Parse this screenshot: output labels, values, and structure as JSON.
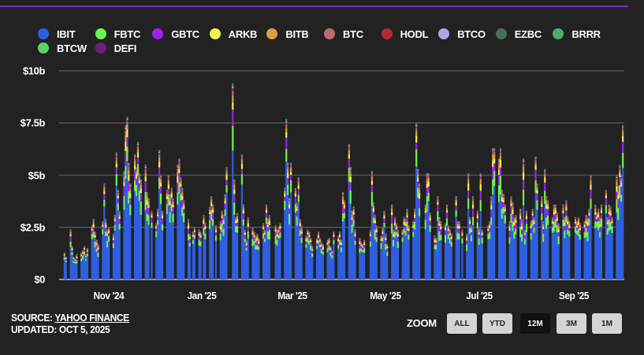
{
  "legend": [
    {
      "name": "IBIT",
      "color": "#2f5fe0"
    },
    {
      "name": "FBTC",
      "color": "#6cf54a"
    },
    {
      "name": "GBTC",
      "color": "#a020f0"
    },
    {
      "name": "ARKB",
      "color": "#eef54a"
    },
    {
      "name": "BITB",
      "color": "#d9a03c"
    },
    {
      "name": "BTC",
      "color": "#c06874"
    },
    {
      "name": "HODL",
      "color": "#b02a35"
    },
    {
      "name": "BTCO",
      "color": "#b3a3e8"
    },
    {
      "name": "EZBC",
      "color": "#4a7058"
    },
    {
      "name": "BRRR",
      "color": "#4caf6a"
    },
    {
      "name": "BTCW",
      "color": "#5fcf6a"
    },
    {
      "name": "DEFI",
      "color": "#6a1f7a"
    }
  ],
  "footer": {
    "source_prefix": "SOURCE: ",
    "source_link": "YAHOO FINANCE",
    "updated": "UPDATED: OCT 5, 2025"
  },
  "zoom": {
    "label": "ZOOM",
    "buttons": [
      "ALL",
      "YTD",
      "12M",
      "3M",
      "1M"
    ],
    "active": "12M"
  },
  "chart_data": {
    "type": "bar",
    "stacked": true,
    "ylim": [
      0,
      10
    ],
    "yticks": [
      {
        "value": 0,
        "label": "$0"
      },
      {
        "value": 2.5,
        "label": "$2.5b"
      },
      {
        "value": 5,
        "label": "$5b"
      },
      {
        "value": 7.5,
        "label": "$7.5b"
      },
      {
        "value": 10,
        "label": "$10b"
      }
    ],
    "xticks": [
      {
        "date": "2024-11-01",
        "label": "Nov '24"
      },
      {
        "date": "2025-01-01",
        "label": "Jan '25"
      },
      {
        "date": "2025-03-01",
        "label": "Mar '25"
      },
      {
        "date": "2025-05-01",
        "label": "May '25"
      },
      {
        "date": "2025-07-01",
        "label": "Jul '25"
      },
      {
        "date": "2025-09-01",
        "label": "Sep '25"
      }
    ],
    "grid": true,
    "legend_position": "top",
    "unit": "USD billions, daily trading volume",
    "approx_share": {
      "IBIT": 0.7,
      "FBTC": 0.1,
      "GBTC": 0.07,
      "ARKB": 0.04,
      "BITB": 0.03,
      "BTC": 0.02,
      "HODL": 0.01,
      "BTCO": 0.008,
      "EZBC": 0.006,
      "BRRR": 0.004,
      "BTCW": 0.003,
      "DEFI": 0.002
    },
    "daily_totals": [
      {
        "month": "2024-10",
        "days": [
          3,
          4,
          7,
          8,
          9,
          10,
          11,
          14,
          15,
          16,
          17,
          18,
          21,
          22,
          23,
          24,
          25,
          28,
          29,
          30,
          31
        ],
        "totals": [
          1.3,
          1.1,
          2.4,
          1.6,
          1.1,
          1.0,
          1.2,
          1.3,
          1.4,
          1.6,
          1.2,
          1.5,
          2.6,
          2.9,
          2.3,
          1.9,
          1.7,
          2.8,
          4.6,
          2.9,
          2.4
        ]
      },
      {
        "month": "2024-11",
        "days": [
          1,
          4,
          5,
          6,
          7,
          8,
          11,
          12,
          13,
          14,
          15,
          18,
          19,
          20,
          21,
          22,
          25,
          26,
          27,
          29
        ],
        "totals": [
          2.5,
          2.2,
          3.1,
          6.1,
          4.3,
          3.3,
          5.2,
          7.4,
          7.8,
          5.6,
          4.6,
          6.0,
          5.4,
          6.6,
          5.1,
          4.8,
          5.5,
          4.2,
          3.9,
          3.3
        ]
      },
      {
        "month": "2024-12",
        "days": [
          2,
          3,
          4,
          5,
          6,
          9,
          10,
          11,
          12,
          13,
          16,
          17,
          18,
          19,
          20,
          23,
          24,
          26,
          27,
          30,
          31
        ],
        "totals": [
          2.7,
          3.4,
          6.2,
          5.0,
          3.3,
          4.3,
          5.0,
          4.1,
          4.4,
          3.9,
          5.5,
          5.8,
          4.9,
          4.4,
          3.8,
          2.9,
          2.2,
          2.3,
          2.5,
          2.4,
          2.3
        ]
      },
      {
        "month": "2025-01",
        "days": [
          2,
          3,
          6,
          7,
          8,
          10,
          13,
          14,
          15,
          16,
          17,
          21,
          22,
          23,
          24,
          27,
          28,
          29,
          30,
          31
        ],
        "totals": [
          3.1,
          2.7,
          3.5,
          4.0,
          3.6,
          2.6,
          2.8,
          3.3,
          3.1,
          4.1,
          5.4,
          9.4,
          4.8,
          3.0,
          3.2,
          6.0,
          3.6,
          2.4,
          1.9,
          3.0
        ]
      },
      {
        "month": "2025-02",
        "days": [
          3,
          4,
          5,
          6,
          7,
          10,
          11,
          12,
          13,
          14,
          18,
          19,
          20,
          21,
          24,
          25,
          26,
          27,
          28
        ],
        "totals": [
          2.5,
          2.3,
          2.1,
          2.2,
          2.0,
          2.7,
          2.4,
          3.6,
          2.9,
          3.1,
          2.6,
          2.4,
          2.5,
          2.7,
          4.4,
          7.7,
          5.6,
          3.9,
          5.6
        ]
      },
      {
        "month": "2025-03",
        "days": [
          3,
          4,
          5,
          6,
          7,
          10,
          11,
          12,
          13,
          14,
          17,
          18,
          19,
          20,
          21,
          24,
          25,
          26,
          27,
          28,
          31
        ],
        "totals": [
          4.4,
          3.7,
          4.9,
          2.9,
          2.6,
          2.1,
          2.4,
          2.3,
          2.0,
          1.6,
          2.0,
          2.3,
          2.0,
          1.8,
          1.7,
          1.9,
          2.0,
          1.6,
          1.4,
          2.3,
          2.1
        ]
      },
      {
        "month": "2025-04",
        "days": [
          1,
          2,
          3,
          4,
          7,
          8,
          9,
          10,
          11,
          14,
          15,
          16,
          17,
          21,
          22,
          23,
          24,
          25,
          28,
          29,
          30
        ],
        "totals": [
          2.3,
          1.9,
          4.2,
          3.8,
          6.5,
          5.4,
          3.3,
          3.5,
          2.4,
          2.0,
          1.8,
          1.7,
          1.9,
          2.4,
          5.2,
          3.7,
          3.1,
          2.6,
          2.1,
          2.5,
          3.3
        ]
      },
      {
        "month": "2025-05",
        "days": [
          1,
          2,
          5,
          6,
          7,
          8,
          9,
          12,
          13,
          14,
          15,
          16,
          19,
          20,
          21,
          22,
          23,
          27,
          28,
          29,
          30
        ],
        "totals": [
          2.2,
          1.7,
          3.6,
          2.4,
          3.0,
          2.7,
          2.4,
          2.4,
          3.0,
          2.9,
          3.4,
          2.6,
          2.8,
          3.4,
          7.5,
          5.3,
          4.6,
          3.6,
          5.1,
          5.1,
          3.2
        ]
      },
      {
        "month": "2025-06",
        "days": [
          2,
          3,
          4,
          5,
          6,
          9,
          10,
          11,
          12,
          13,
          16,
          17,
          18,
          20,
          23,
          24,
          25,
          26,
          27,
          30
        ],
        "totals": [
          2.1,
          2.0,
          4.0,
          3.0,
          2.8,
          2.7,
          3.6,
          2.6,
          2.4,
          2.2,
          4.0,
          2.8,
          2.8,
          2.4,
          2.2,
          5.1,
          3.0,
          2.6,
          4.0,
          3.3
        ]
      },
      {
        "month": "2025-07",
        "days": [
          1,
          2,
          3,
          7,
          8,
          9,
          10,
          11,
          14,
          15,
          16,
          17,
          18,
          21,
          22,
          23,
          24,
          25,
          28,
          29,
          30,
          31
        ],
        "totals": [
          2.5,
          5.1,
          2.4,
          2.6,
          2.8,
          4.0,
          6.3,
          6.3,
          5.8,
          6.3,
          4.3,
          4.1,
          3.6,
          2.8,
          4.0,
          3.7,
          3.0,
          3.1,
          3.4,
          2.9,
          5.8,
          2.4
        ]
      },
      {
        "month": "2025-08",
        "days": [
          1,
          4,
          5,
          6,
          7,
          8,
          11,
          12,
          13,
          14,
          15,
          18,
          19,
          20,
          21,
          22,
          25,
          26,
          27,
          28,
          29
        ],
        "totals": [
          3.3,
          2.8,
          3.4,
          3.0,
          5.9,
          4.6,
          4.0,
          2.8,
          5.3,
          4.0,
          3.8,
          3.0,
          3.6,
          3.6,
          3.2,
          2.7,
          3.6,
          3.0,
          3.8,
          3.0,
          2.8
        ]
      },
      {
        "month": "2025-09",
        "days": [
          2,
          3,
          4,
          5,
          8,
          9,
          10,
          11,
          12,
          15,
          16,
          17,
          18,
          19,
          22,
          23,
          24,
          25,
          26,
          29,
          30
        ],
        "totals": [
          3.0,
          2.8,
          3.0,
          2.7,
          2.8,
          3.1,
          3.0,
          3.4,
          5.0,
          3.6,
          3.2,
          3.4,
          3.0,
          3.6,
          4.3,
          3.0,
          3.6,
          3.5,
          3.0,
          5.0,
          4.5
        ]
      },
      {
        "month": "2025-10",
        "days": [
          1,
          2,
          3
        ],
        "totals": [
          5.5,
          5.0,
          7.4
        ]
      }
    ]
  }
}
